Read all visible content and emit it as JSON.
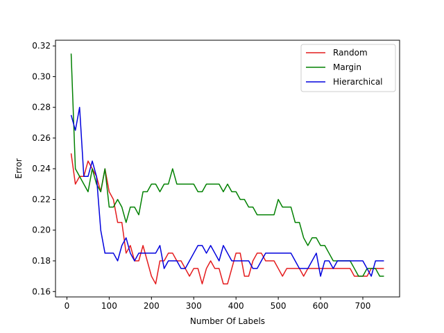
{
  "chart_data": {
    "type": "line",
    "title": "",
    "xlabel": "Number Of Labels",
    "ylabel": "Error",
    "xlim": [
      -27,
      787
    ],
    "ylim": [
      0.1565,
      0.3237
    ],
    "xticks": [
      "0",
      "100",
      "200",
      "300",
      "400",
      "500",
      "600",
      "700"
    ],
    "xtick_values": [
      0,
      100,
      200,
      300,
      400,
      500,
      600,
      700
    ],
    "yticks": [
      "0.16",
      "0.18",
      "0.20",
      "0.22",
      "0.24",
      "0.26",
      "0.28",
      "0.30",
      "0.32"
    ],
    "ytick_values": [
      0.16,
      0.18,
      0.2,
      0.22,
      0.24,
      0.26,
      0.28,
      0.3,
      0.32
    ],
    "grid": false,
    "legend_position": "top-right",
    "x": [
      10,
      20,
      30,
      40,
      50,
      60,
      70,
      80,
      90,
      100,
      110,
      120,
      130,
      140,
      150,
      160,
      170,
      180,
      190,
      200,
      210,
      220,
      230,
      240,
      250,
      260,
      270,
      280,
      290,
      300,
      310,
      320,
      330,
      340,
      350,
      360,
      370,
      380,
      390,
      400,
      410,
      420,
      430,
      440,
      450,
      460,
      470,
      480,
      490,
      500,
      510,
      520,
      530,
      540,
      550,
      560,
      570,
      580,
      590,
      600,
      610,
      620,
      630,
      640,
      650,
      660,
      670,
      680,
      690,
      700,
      710,
      720,
      730,
      740,
      750
    ],
    "series": [
      {
        "name": "Random",
        "color": "#e41a1c",
        "values": [
          0.25,
          0.23,
          0.235,
          0.235,
          0.245,
          0.24,
          0.235,
          0.225,
          0.24,
          0.225,
          0.22,
          0.205,
          0.205,
          0.185,
          0.19,
          0.18,
          0.18,
          0.19,
          0.18,
          0.17,
          0.165,
          0.18,
          0.18,
          0.185,
          0.185,
          0.18,
          0.18,
          0.175,
          0.17,
          0.175,
          0.175,
          0.165,
          0.175,
          0.18,
          0.175,
          0.175,
          0.165,
          0.165,
          0.175,
          0.185,
          0.185,
          0.17,
          0.17,
          0.18,
          0.185,
          0.185,
          0.18,
          0.18,
          0.18,
          0.175,
          0.17,
          0.175,
          0.175,
          0.175,
          0.175,
          0.17,
          0.175,
          0.175,
          0.175,
          0.175,
          0.175,
          0.175,
          0.175,
          0.175,
          0.175,
          0.175,
          0.175,
          0.17,
          0.17,
          0.17,
          0.17,
          0.175,
          0.175,
          0.175,
          0.175
        ]
      },
      {
        "name": "Margin",
        "color": "#008000",
        "values": [
          0.315,
          0.24,
          0.235,
          0.23,
          0.225,
          0.24,
          0.23,
          0.225,
          0.24,
          0.215,
          0.215,
          0.22,
          0.215,
          0.205,
          0.215,
          0.215,
          0.21,
          0.225,
          0.225,
          0.23,
          0.23,
          0.225,
          0.23,
          0.23,
          0.24,
          0.23,
          0.23,
          0.23,
          0.23,
          0.23,
          0.225,
          0.225,
          0.23,
          0.23,
          0.23,
          0.23,
          0.225,
          0.23,
          0.225,
          0.225,
          0.22,
          0.22,
          0.215,
          0.215,
          0.21,
          0.21,
          0.21,
          0.21,
          0.21,
          0.22,
          0.215,
          0.215,
          0.215,
          0.205,
          0.205,
          0.195,
          0.19,
          0.195,
          0.195,
          0.19,
          0.19,
          0.185,
          0.18,
          0.18,
          0.18,
          0.18,
          0.18,
          0.175,
          0.17,
          0.17,
          0.175,
          0.175,
          0.175,
          0.17,
          0.17
        ]
      },
      {
        "name": "Hierarchical",
        "color": "#0000dd",
        "values": [
          0.275,
          0.265,
          0.28,
          0.235,
          0.235,
          0.245,
          0.235,
          0.2,
          0.185,
          0.185,
          0.185,
          0.18,
          0.19,
          0.195,
          0.185,
          0.18,
          0.185,
          0.185,
          0.185,
          0.185,
          0.185,
          0.19,
          0.175,
          0.18,
          0.18,
          0.18,
          0.175,
          0.175,
          0.18,
          0.185,
          0.19,
          0.19,
          0.185,
          0.19,
          0.185,
          0.18,
          0.19,
          0.185,
          0.18,
          0.18,
          0.18,
          0.18,
          0.18,
          0.175,
          0.175,
          0.18,
          0.185,
          0.185,
          0.185,
          0.185,
          0.185,
          0.185,
          0.185,
          0.18,
          0.175,
          0.175,
          0.175,
          0.18,
          0.185,
          0.17,
          0.18,
          0.18,
          0.175,
          0.18,
          0.18,
          0.18,
          0.18,
          0.18,
          0.18,
          0.18,
          0.175,
          0.17,
          0.18,
          0.18,
          0.18
        ]
      }
    ]
  }
}
